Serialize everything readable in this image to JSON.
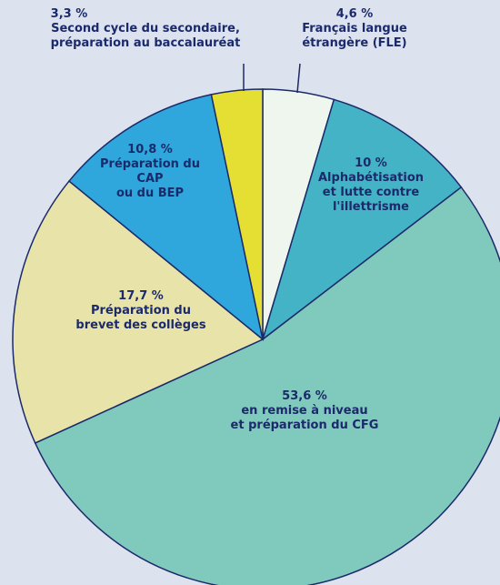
{
  "chart_data": {
    "type": "pie",
    "categories": [
      "Français langue\nétrangère (FLE)",
      "Alphabétisation\net lutte contre\nl'illettrisme",
      "en remise à niveau\net préparation du CFG",
      "Préparation du\nbrevet des collèges",
      "Préparation du\nCAP\nou du BEP",
      "Second cycle du secondaire,\npréparation au baccalauréat"
    ],
    "values": [
      4.6,
      10,
      53.6,
      17.7,
      10.8,
      3.3
    ],
    "value_labels": [
      "4,6 %",
      "10 %",
      "53,6 %",
      "17,7 %",
      "10,8 %",
      "3,3 %"
    ],
    "colors": [
      "#eef6ee",
      "#45b3c6",
      "#80c9bd",
      "#e8e3a9",
      "#2fa7dc",
      "#e5df33"
    ]
  }
}
